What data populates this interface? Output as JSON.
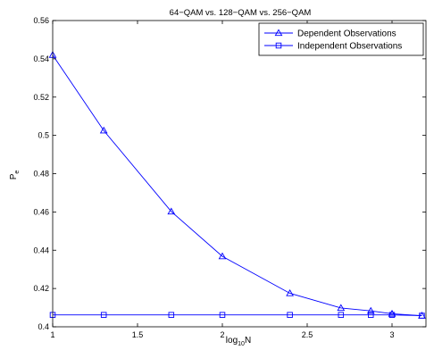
{
  "chart_data": {
    "type": "line",
    "title": "64−QAM vs. 128−QAM vs. 256−QAM",
    "xlabel_base": "log",
    "xlabel_sub": "10",
    "xlabel_tail": "N",
    "ylabel_base": "P",
    "ylabel_sub": "e",
    "xlim": [
      1,
      3.2
    ],
    "ylim": [
      0.4,
      0.56
    ],
    "x_ticks": [
      1,
      1.5,
      2,
      2.5,
      3
    ],
    "x_tick_labels": [
      "1",
      "1.5",
      "2",
      "2.5",
      "3"
    ],
    "y_ticks": [
      0.4,
      0.42,
      0.44,
      0.46,
      0.48,
      0.5,
      0.52,
      0.54,
      0.56
    ],
    "y_tick_labels": [
      "0.4",
      "0.42",
      "0.44",
      "0.46",
      "0.48",
      "0.5",
      "0.52",
      "0.54",
      "0.56"
    ],
    "grid": false,
    "legend_position": "top-right",
    "series": [
      {
        "name": "Dependent Observations",
        "marker": "triangle",
        "color": "#0000ff",
        "x": [
          1,
          1.301,
          1.699,
          2,
          2.398,
          2.699,
          2.875,
          3,
          3.176
        ],
        "values": [
          0.542,
          0.5025,
          0.4602,
          0.4368,
          0.4175,
          0.4098,
          0.4083,
          0.4068,
          0.4058
        ]
      },
      {
        "name": "Independent Observations",
        "marker": "square",
        "color": "#0000ff",
        "x": [
          1,
          1.301,
          1.699,
          2,
          2.398,
          2.699,
          2.875,
          3,
          3.176
        ],
        "values": [
          0.4062,
          0.4062,
          0.4062,
          0.4062,
          0.4062,
          0.4062,
          0.4062,
          0.4062,
          0.4058
        ]
      }
    ]
  }
}
